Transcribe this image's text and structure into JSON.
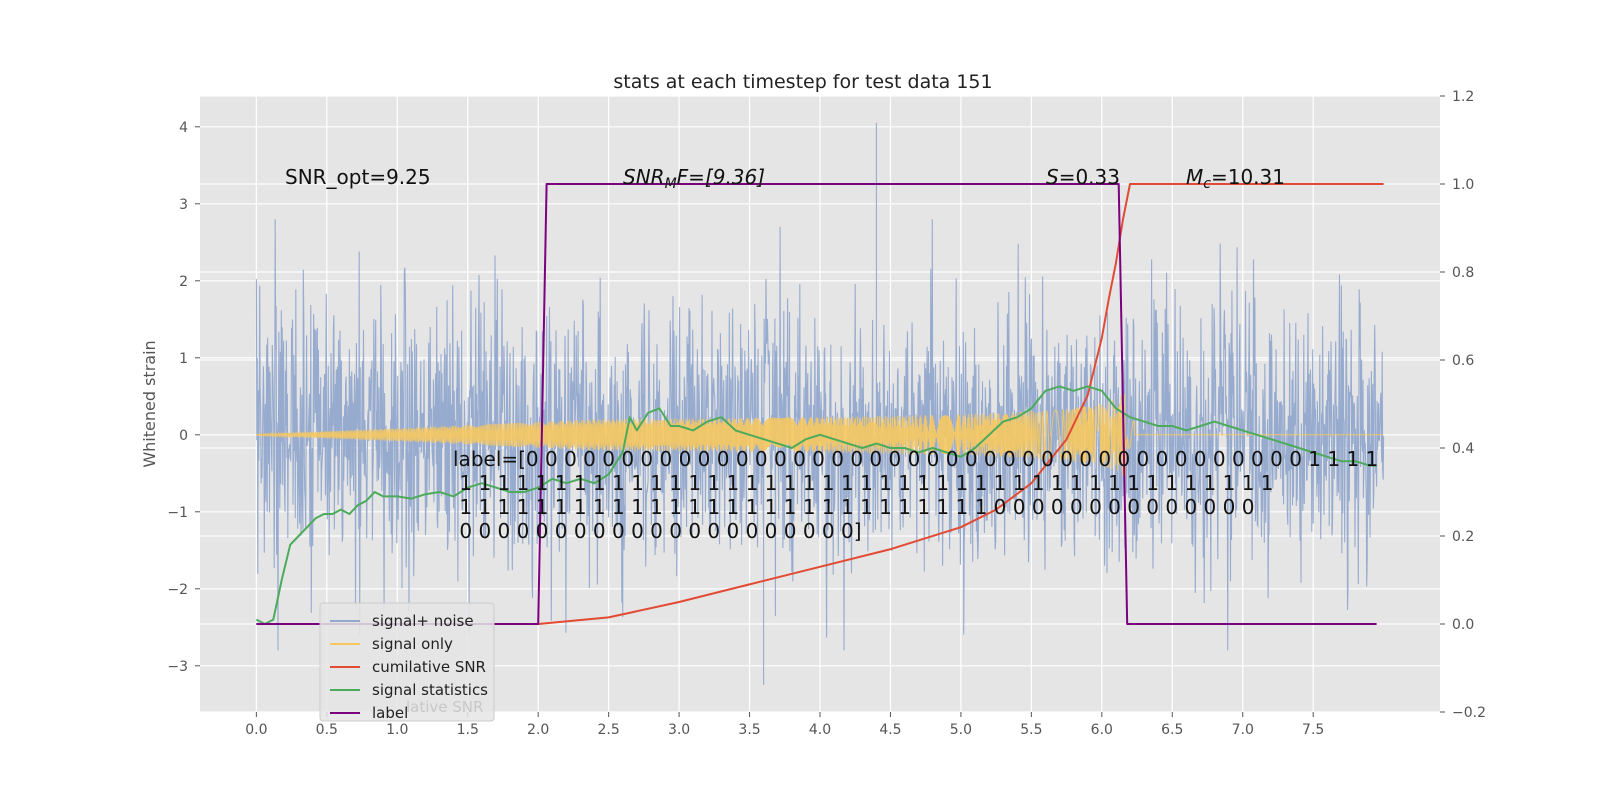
{
  "chart_data": {
    "type": "line",
    "title": "stats at each timestep for test data 151",
    "ylabel": "Whitened strain",
    "ylabel_right": "",
    "xlim": [
      -0.4,
      8.4
    ],
    "ylim": [
      -3.6,
      4.4
    ],
    "ylim_right": [
      -0.2,
      1.2
    ],
    "grid": true,
    "background": "#e5e5e5",
    "x_ticks": [
      "0.0",
      "0.5",
      "1.0",
      "1.5",
      "2.0",
      "2.5",
      "3.0",
      "3.5",
      "4.0",
      "4.5",
      "5.0",
      "5.5",
      "6.0",
      "6.5",
      "7.0",
      "7.5"
    ],
    "y_ticks": [
      "−3",
      "−2",
      "−1",
      "0",
      "1",
      "2",
      "3",
      "4"
    ],
    "y_right_ticks": [
      "−0.2",
      "0.0",
      "0.2",
      "0.4",
      "0.6",
      "0.8",
      "1.0",
      "1.2"
    ],
    "annotations": {
      "snr_opt": "SNR_opt=9.25",
      "snr_mf": "SNR",
      "snr_mf_sub": "M",
      "snr_mf_rest": "F=[9.36]",
      "s_label": "S",
      "s_value": "=0.33",
      "mc_label": "M",
      "mc_sub": "c",
      "mc_value": "=10.31"
    },
    "label_text": [
      "label=[0 0 0 0 0 0 0 0 0 0 0 0 0 0 0 0 0 0 0 0 0 0 0 0 0 0 0 0 0 0 0 0 0 0 0 0 0 0 0 0 0 1 1 1 1",
      " 1 1 1 1 1 1 1 1 1 1 1 1 1 1 1 1 1 1 1 1 1 1 1 1 1 1 1 1 1 1 1 1 1 1 1 1 1 1 1 1 1 1 1",
      " 1 1 1 1 1 1 1 1 1 1 1 1 1 1 1 1 1 1 1 1 1 1 1 1 1 1 1 1 0 0 0 0 0 0 0 0 0 0 0 0 0 0",
      " 0 0 0 0 0 0 0 0 0 0 0 0 0 0 0 0 0 0 0 0 0]"
    ],
    "legend": {
      "position": "lower-left",
      "entries": [
        {
          "name": "signal+ noise",
          "color": "#92a8cd"
        },
        {
          "name": "signal only",
          "color": "#f6c85f"
        },
        {
          "name": "cumilative SNR",
          "color": "#e24a33"
        },
        {
          "name": "signal statistics",
          "color": "#4cab5a"
        },
        {
          "name": "label",
          "color": "#7b0080"
        }
      ],
      "ghost_text": "lative SNR"
    },
    "series": [
      {
        "name": "signal+ noise",
        "axis": "left",
        "style": "noise",
        "color": "#92a8cd",
        "x_range": [
          0.0,
          8.0
        ],
        "typical_amplitude": 1.0,
        "max_amplitude": 2.8,
        "spike": {
          "x": 4.4,
          "y": 4.05
        },
        "min_spike": {
          "x": 3.6,
          "y": -3.25
        }
      },
      {
        "name": "signal only",
        "axis": "left",
        "style": "chirp",
        "color": "#f6c85f",
        "x_range": [
          0.0,
          8.0
        ],
        "merger_x": 6.18,
        "peak_amplitude": 0.6
      },
      {
        "name": "cumilative SNR",
        "axis": "right",
        "color": "#e24a33",
        "x": [
          0.0,
          2.0,
          2.5,
          3.0,
          3.5,
          4.0,
          4.5,
          5.0,
          5.25,
          5.5,
          5.75,
          5.9,
          6.0,
          6.05,
          6.1,
          6.15,
          6.2,
          6.3,
          7.5,
          8.0
        ],
        "y": [
          0.0,
          0.0,
          0.015,
          0.05,
          0.09,
          0.13,
          0.17,
          0.22,
          0.26,
          0.32,
          0.42,
          0.52,
          0.65,
          0.74,
          0.82,
          0.92,
          1.0,
          1.0,
          1.0,
          1.0
        ]
      },
      {
        "name": "signal statistics",
        "axis": "right",
        "color": "#4cab5a",
        "x": [
          0.0,
          0.06,
          0.12,
          0.18,
          0.24,
          0.3,
          0.36,
          0.42,
          0.48,
          0.54,
          0.6,
          0.66,
          0.72,
          0.78,
          0.84,
          0.9,
          1.0,
          1.1,
          1.2,
          1.3,
          1.4,
          1.5,
          1.6,
          1.7,
          1.8,
          1.9,
          2.0,
          2.1,
          2.2,
          2.3,
          2.4,
          2.5,
          2.6,
          2.65,
          2.7,
          2.78,
          2.86,
          2.94,
          3.0,
          3.1,
          3.2,
          3.3,
          3.4,
          3.5,
          3.6,
          3.7,
          3.8,
          3.9,
          4.0,
          4.1,
          4.2,
          4.3,
          4.4,
          4.5,
          4.6,
          4.7,
          4.8,
          4.9,
          5.0,
          5.1,
          5.2,
          5.3,
          5.4,
          5.5,
          5.6,
          5.7,
          5.8,
          5.9,
          6.0,
          6.1,
          6.2,
          6.3,
          6.4,
          6.5,
          6.6,
          6.7,
          6.8,
          6.9,
          7.0,
          7.1,
          7.2,
          7.3,
          7.4,
          7.5,
          7.6,
          7.7,
          7.8,
          7.9,
          7.95
        ],
        "y": [
          0.01,
          0.0,
          0.01,
          0.1,
          0.18,
          0.2,
          0.22,
          0.24,
          0.25,
          0.25,
          0.26,
          0.25,
          0.27,
          0.28,
          0.3,
          0.29,
          0.29,
          0.285,
          0.295,
          0.3,
          0.29,
          0.31,
          0.32,
          0.31,
          0.3,
          0.3,
          0.31,
          0.33,
          0.32,
          0.33,
          0.32,
          0.34,
          0.39,
          0.47,
          0.44,
          0.48,
          0.49,
          0.45,
          0.45,
          0.44,
          0.46,
          0.47,
          0.44,
          0.43,
          0.42,
          0.41,
          0.4,
          0.42,
          0.43,
          0.42,
          0.41,
          0.4,
          0.41,
          0.4,
          0.4,
          0.39,
          0.4,
          0.39,
          0.38,
          0.4,
          0.43,
          0.46,
          0.47,
          0.49,
          0.53,
          0.54,
          0.53,
          0.54,
          0.53,
          0.49,
          0.47,
          0.46,
          0.45,
          0.45,
          0.44,
          0.45,
          0.46,
          0.45,
          0.44,
          0.43,
          0.42,
          0.41,
          0.4,
          0.39,
          0.38,
          0.37,
          0.37,
          0.36,
          0.36
        ]
      },
      {
        "name": "label",
        "axis": "right",
        "color": "#7b0080",
        "x": [
          0.0,
          2.0,
          2.06,
          6.12,
          6.18,
          7.95
        ],
        "y": [
          0.0,
          0.0,
          1.0,
          1.0,
          0.0,
          0.0
        ]
      }
    ]
  }
}
